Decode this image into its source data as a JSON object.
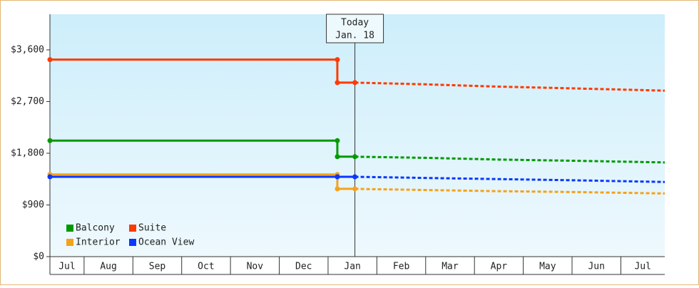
{
  "chart_data": {
    "type": "line",
    "categories": [
      "Jul",
      "Aug",
      "Sep",
      "Oct",
      "Nov",
      "Dec",
      "Jan",
      "Feb",
      "Mar",
      "Apr",
      "May",
      "Jun",
      "Jul"
    ],
    "xlim": [
      0.3,
      12.9
    ],
    "ylim": [
      0,
      4220
    ],
    "yticks": [
      {
        "value": 0,
        "label": "$0"
      },
      {
        "value": 900,
        "label": "$900"
      },
      {
        "value": 1800,
        "label": "$1,800"
      },
      {
        "value": 2700,
        "label": "$2,700"
      },
      {
        "value": 3600,
        "label": "$3,600"
      }
    ],
    "annotation": {
      "text": [
        "Today",
        "Jan. 18"
      ],
      "x": 6.55
    },
    "series": [
      {
        "name": "Balcony",
        "color": "#009a00",
        "x": [
          0.3,
          6.19,
          6.19,
          6.55
        ],
        "values": [
          2020,
          2020,
          1740,
          1740
        ],
        "projection": {
          "x": [
            6.55,
            8,
            9.5,
            11,
            12.9
          ],
          "values": [
            1740,
            1720,
            1690,
            1670,
            1640
          ]
        }
      },
      {
        "name": "Suite",
        "color": "#ff3a00",
        "x": [
          0.3,
          6.19,
          6.19,
          6.55
        ],
        "values": [
          3430,
          3430,
          3030,
          3030
        ],
        "projection": {
          "x": [
            6.55,
            8,
            9.5,
            11,
            12.9
          ],
          "values": [
            3030,
            3000,
            2960,
            2930,
            2890
          ]
        }
      },
      {
        "name": "Interior",
        "color": "#f5a21b",
        "x": [
          0.3,
          6.19,
          6.19,
          6.55
        ],
        "values": [
          1430,
          1430,
          1180,
          1180
        ],
        "projection": {
          "x": [
            6.55,
            8,
            9.5,
            11,
            12.9
          ],
          "values": [
            1180,
            1160,
            1140,
            1125,
            1100
          ]
        }
      },
      {
        "name": "Ocean View",
        "color": "#0a37ff",
        "x": [
          0.3,
          6.19,
          6.19,
          6.55
        ],
        "values": [
          1390,
          1390,
          1390,
          1390
        ],
        "projection": {
          "x": [
            6.55,
            8,
            9.5,
            11,
            12.9
          ],
          "values": [
            1390,
            1370,
            1350,
            1330,
            1300
          ]
        }
      }
    ]
  }
}
